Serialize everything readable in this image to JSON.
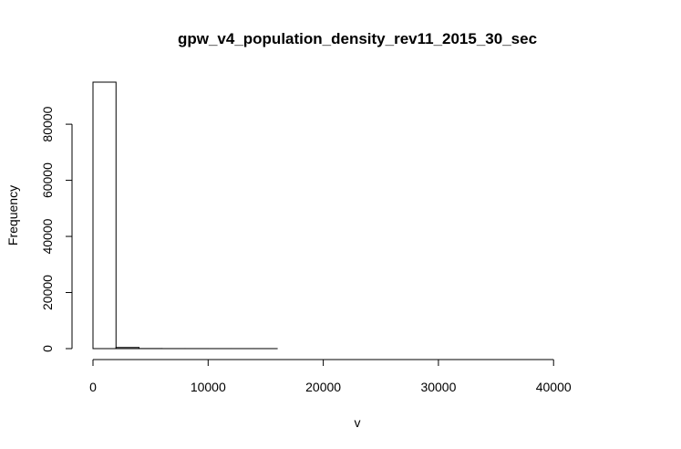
{
  "chart_data": {
    "type": "bar",
    "title": "gpw_v4_population_density_rev11_2015_30_sec",
    "xlabel": "v",
    "ylabel": "Frequency",
    "bin_width": 2000,
    "bin_starts": [
      0,
      2000,
      4000,
      6000,
      8000,
      10000,
      12000,
      14000,
      16000,
      18000,
      20000,
      22000,
      24000,
      26000,
      28000,
      30000,
      32000,
      34000,
      36000,
      38000,
      40000,
      42000,
      44000
    ],
    "values": [
      95000,
      400,
      30,
      10,
      5,
      3,
      2,
      2,
      1,
      1,
      1,
      1,
      1,
      0,
      1,
      0,
      1,
      0,
      0,
      0,
      1,
      0,
      1
    ],
    "xlim": [
      0,
      46000
    ],
    "ylim": [
      0,
      95000
    ],
    "x_ticks": [
      0,
      10000,
      20000,
      30000,
      40000
    ],
    "x_tick_labels": [
      "0",
      "10000",
      "20000",
      "30000",
      "40000"
    ],
    "y_ticks": [
      0,
      20000,
      40000,
      60000,
      80000
    ],
    "y_tick_labels": [
      "0",
      "20000",
      "40000",
      "60000",
      "80000"
    ],
    "grid": false,
    "bar_fill": "#ffffff",
    "bar_stroke": "#000000"
  }
}
